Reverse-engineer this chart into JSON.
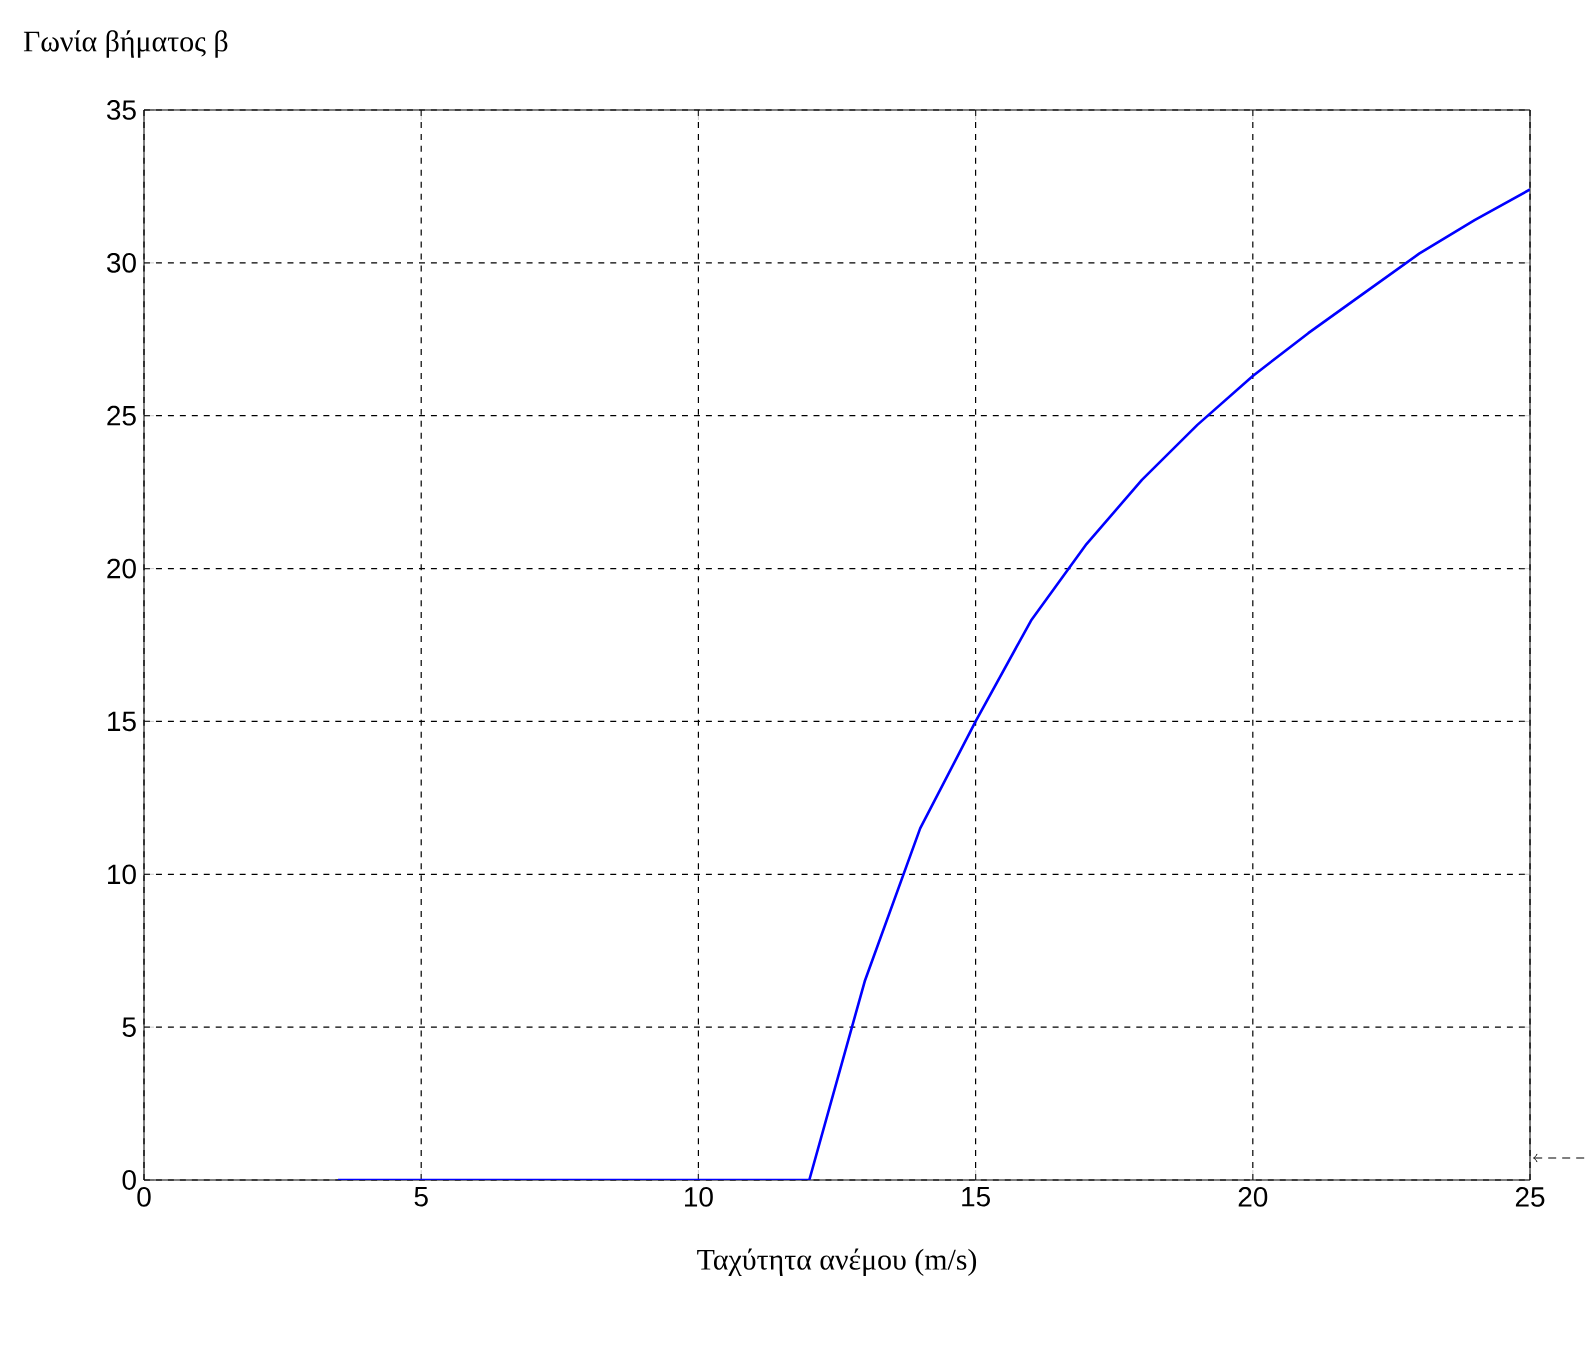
{
  "chart_data": {
    "type": "line",
    "xlabel": "Ταχύτητα ανέμου (m/s)",
    "ylabel": "Γωνία βήματος β",
    "x": [
      3.5,
      12,
      13,
      14,
      15,
      16,
      17,
      18,
      19,
      20,
      21,
      22,
      23,
      24,
      25
    ],
    "series": [
      {
        "color": "#0000ff",
        "values": [
          0,
          0,
          6.5,
          11.5,
          15,
          18.3,
          20.8,
          22.9,
          24.7,
          26.3,
          27.7,
          29.0,
          30.3,
          31.4,
          32.4
        ]
      }
    ],
    "xlim": [
      0,
      25
    ],
    "ylim": [
      0,
      35
    ],
    "xticks": [
      0,
      5,
      10,
      15,
      20,
      25
    ],
    "yticks": [
      0,
      5,
      10,
      15,
      20,
      25,
      30,
      35
    ],
    "grid": true,
    "line_style": "solid",
    "marker": "none"
  }
}
